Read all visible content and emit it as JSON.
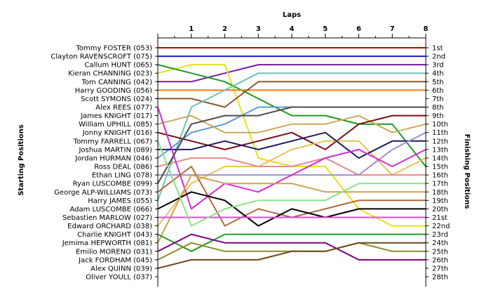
{
  "chart_data": {
    "type": "line",
    "title": "Laps",
    "ylabel_left": "Starting Positions",
    "ylabel_right": "Finishing Positions",
    "x": [
      0,
      1,
      2,
      3,
      4,
      5,
      6,
      7,
      8
    ],
    "xticks": [
      "1",
      "2",
      "3",
      "4",
      "5",
      "6",
      "7",
      "8"
    ],
    "xlim": [
      0,
      8
    ],
    "ylim": [
      1,
      28
    ],
    "y_inverted": true,
    "grid": false,
    "start_labels": [
      "Tommy FOSTER (053)",
      "Clayton RAVENSCROFT (075)",
      "Callum HUNT (065)",
      "Kieran CHANNING (023)",
      "Tom CANNING (042)",
      "Harry GOODING (056)",
      "Scott SYMONS (024)",
      "Alex REES (077)",
      "James KNIGHT (017)",
      "William UPHILL (085)",
      "Jonny KNIGHT (016)",
      "Tommy FARRELL (067)",
      "Joshua MARTIN (089)",
      "Jordan HURMAN (046)",
      "Ross DEAL (086)",
      "Ethan LING (078)",
      "Ryan LUSCOMBE (099)",
      "George ALP-WILLIAMS (073)",
      "Harry JAMES (055)",
      "Adam LUSCOMBE (066)",
      "Sebastien MARLOW (027)",
      "Edward ORCHARD (038)",
      "Charlie KNIGHT (043)",
      "Jemima HEPWORTH (081)",
      "Emilio MORENO (031)",
      "Jack FORDHAM (045)",
      "Alex QUINN (039)",
      "Oliver YOULL (037)"
    ],
    "finish_labels": [
      "1st",
      "2nd",
      "3rd",
      "4th",
      "5th",
      "6th",
      "7th",
      "8th",
      "9th",
      "10th",
      "11th",
      "12th",
      "13th",
      "14th",
      "15th",
      "16th",
      "17th",
      "18th",
      "19th",
      "20th",
      "21st",
      "22nd",
      "23rd",
      "24th",
      "25th",
      "26th",
      "27th",
      "28th"
    ],
    "series": [
      {
        "color": "#d40000",
        "values": [
          1,
          1,
          1,
          1,
          1,
          1,
          1,
          1,
          1
        ]
      },
      {
        "color": "#1c1ccc",
        "values": [
          2,
          2,
          2,
          2,
          2,
          2,
          2,
          2,
          2
        ]
      },
      {
        "color": "#7a1aa6",
        "values": [
          5,
          5,
          4,
          3,
          3,
          3,
          3,
          3,
          3
        ]
      },
      {
        "color": "#e6e21a",
        "values": [
          4,
          3,
          3,
          14,
          15,
          15,
          20,
          22,
          22
        ]
      },
      {
        "color": "#1f9c1f",
        "values": [
          3,
          4,
          5,
          7,
          9,
          9,
          10,
          10,
          15
        ]
      },
      {
        "color": "#ec7a14",
        "values": [
          6,
          6,
          6,
          6,
          6,
          6,
          6,
          6,
          6
        ]
      },
      {
        "color": "#8b5a2b",
        "values": [
          7,
          7,
          8,
          5,
          5,
          5,
          5,
          5,
          5
        ]
      },
      {
        "color": "#6ec3b8",
        "values": [
          19,
          8,
          6,
          4,
          4,
          4,
          4,
          4,
          4
        ]
      },
      {
        "color": "#5a9ad6",
        "values": [
          14,
          11,
          10,
          8,
          8,
          8,
          8,
          8,
          8
        ]
      },
      {
        "color": "#c9a85a",
        "values": [
          10,
          9,
          11,
          11,
          10,
          10,
          9,
          11,
          10
        ]
      },
      {
        "color": "#7a0f14",
        "values": [
          11,
          12,
          13,
          12,
          11,
          13,
          10,
          9,
          9
        ]
      },
      {
        "color": "#e6c25a",
        "values": [
          22,
          17,
          15,
          15,
          13,
          12,
          12,
          16,
          14
        ]
      },
      {
        "color": "#1c1c64",
        "values": [
          13,
          13,
          12,
          13,
          12,
          11,
          14,
          12,
          12
        ]
      },
      {
        "color": "#e88a8a",
        "values": [
          15,
          14,
          14,
          15,
          15,
          14,
          16,
          16,
          16
        ]
      },
      {
        "color": "#9f8fc8",
        "values": [
          16,
          16,
          16,
          16,
          16,
          16,
          16,
          13,
          11
        ]
      },
      {
        "color": "#d62ad6",
        "values": [
          8,
          20,
          17,
          18,
          16,
          14,
          13,
          15,
          13
        ]
      },
      {
        "color": "#4c4c4c",
        "values": [
          17,
          10,
          9,
          9,
          8,
          8,
          8,
          8,
          8
        ]
      },
      {
        "color": "#b26a3c",
        "values": [
          18,
          15,
          22,
          20,
          21,
          20,
          19,
          19,
          19
        ]
      },
      {
        "color": "#d2a050",
        "values": [
          24,
          16,
          17,
          17,
          17,
          18,
          18,
          18,
          18
        ]
      },
      {
        "color": "#000000",
        "values": [
          20,
          18,
          19,
          22,
          20,
          21,
          20,
          20,
          20
        ]
      },
      {
        "color": "#d64cd6",
        "values": [
          21,
          21,
          21,
          21,
          21,
          21,
          21,
          21,
          21
        ]
      },
      {
        "color": "#8be08b",
        "values": [
          12,
          22,
          20,
          19,
          19,
          19,
          17,
          17,
          17
        ]
      },
      {
        "color": "#22a022",
        "values": [
          23,
          25,
          23,
          23,
          23,
          23,
          23,
          23,
          23
        ]
      },
      {
        "color": "#800080",
        "values": [
          25,
          23,
          24,
          24,
          24,
          24,
          26,
          26,
          26
        ]
      },
      {
        "color": "#8b8b2a",
        "values": [
          26,
          24,
          25,
          25,
          25,
          25,
          24,
          25,
          25
        ]
      },
      {
        "color": "#6b4a1a",
        "values": [
          27,
          26,
          26,
          26,
          25,
          25,
          24,
          24,
          24
        ]
      }
    ]
  }
}
